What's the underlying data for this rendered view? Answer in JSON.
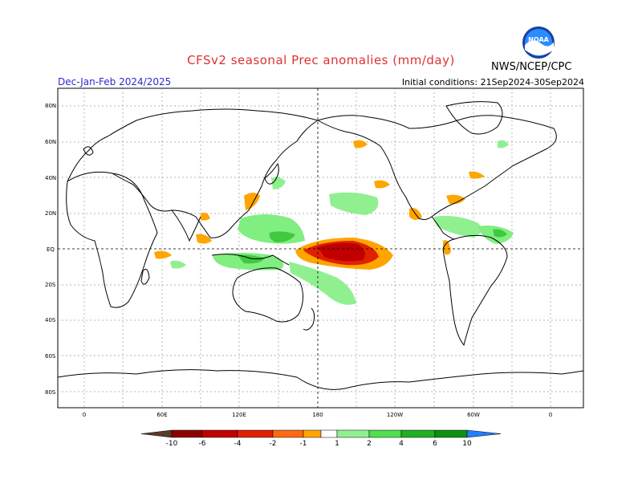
{
  "title": "CFSv2 seasonal Prec anomalies (mm/day)",
  "season": "Dec-Jan-Feb 2024/2025",
  "initial_conditions": "Initial conditions: 21Sep2024-30Sep2024",
  "agency": "NWS/NCEP/CPC",
  "logo_text": "NOAA",
  "lat_ticks": [
    "80N",
    "60N",
    "40N",
    "20N",
    "EQ",
    "20S",
    "40S",
    "60S",
    "80S"
  ],
  "lon_ticks": [
    "0",
    "60E",
    "120E",
    "180",
    "120W",
    "60W",
    "0"
  ],
  "colorbar": {
    "labels": [
      "-10",
      "-6",
      "-4",
      "-2",
      "-1",
      "1",
      "2",
      "4",
      "6",
      "10"
    ],
    "colors": [
      "#5a3a2a",
      "#8c0000",
      "#c00000",
      "#e02000",
      "#ff6a10",
      "#ffa500",
      "#ffffff",
      "#90f090",
      "#50e050",
      "#20b020",
      "#109010",
      "#007a00",
      "#2080ff"
    ]
  }
}
